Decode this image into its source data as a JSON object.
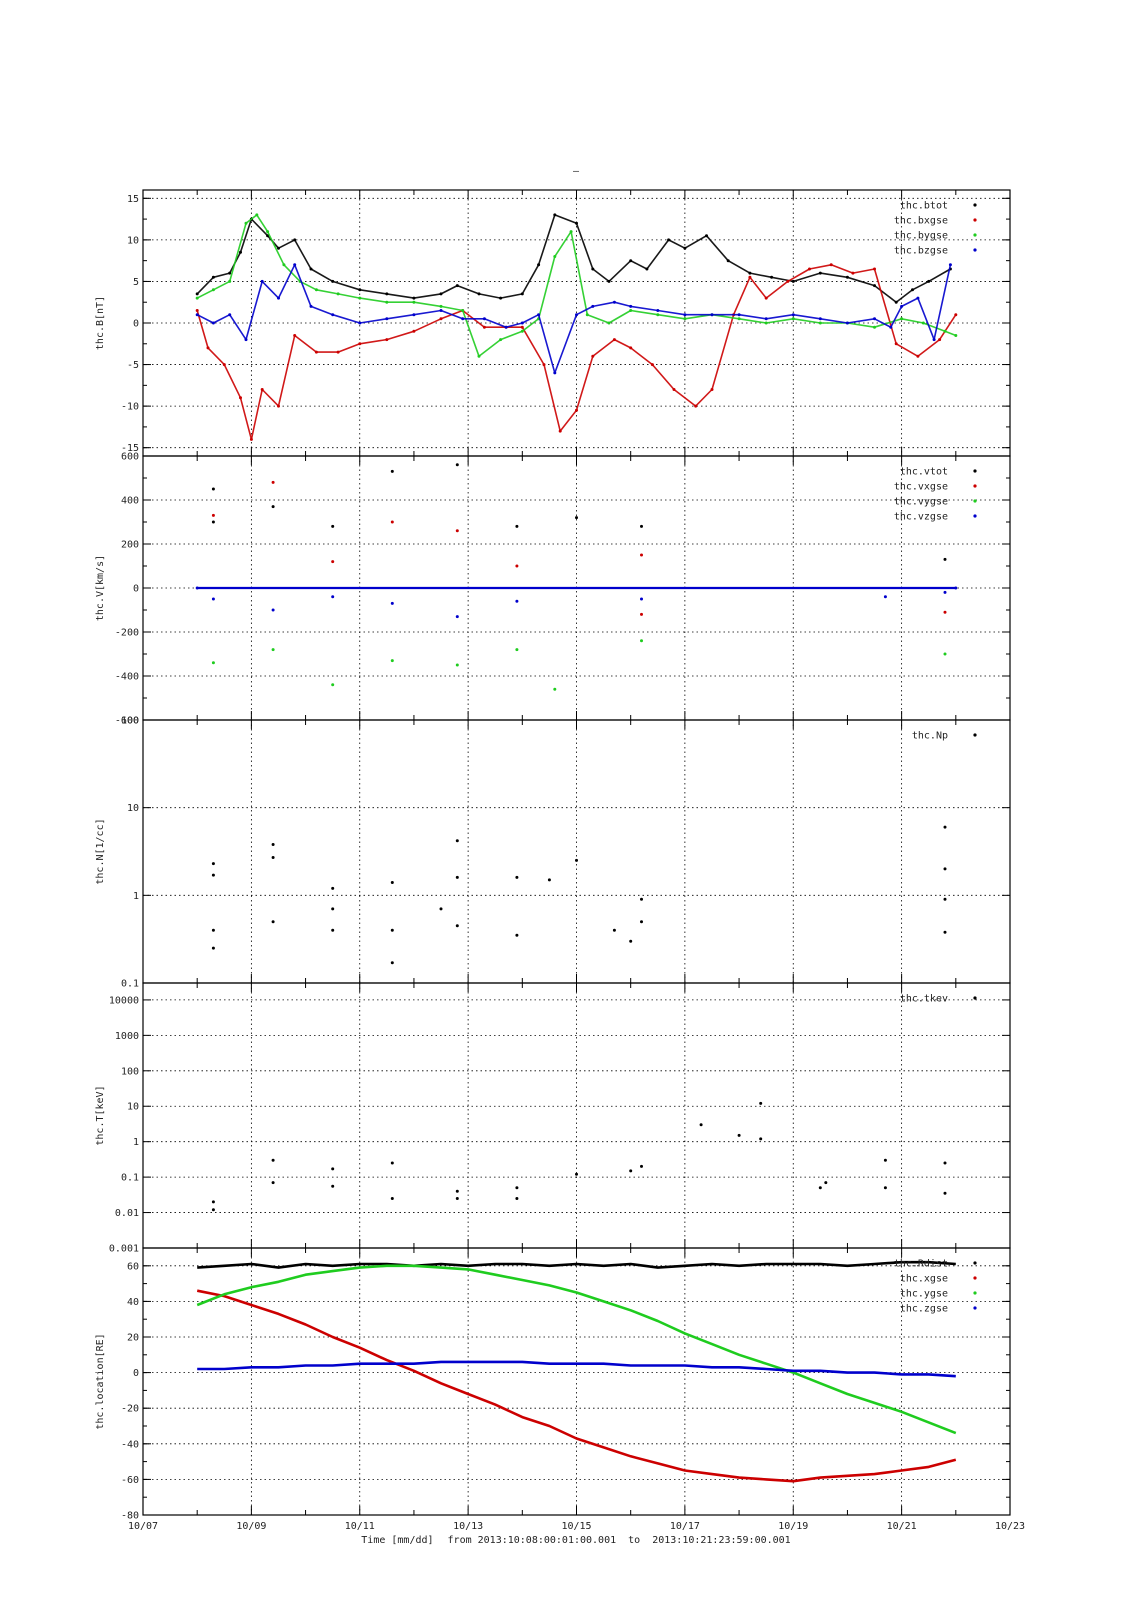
{
  "page": {
    "title_mark": "–",
    "footer": {
      "time_label": "Time [mm/dd]",
      "range_label": "from 2013:10:08:00:01:00.001  to  2013:10:21:23:59:00.001"
    }
  },
  "colors": {
    "black": "#000000",
    "red": "#cc0000",
    "green": "#1fcc1f",
    "blue": "#0000cc",
    "grid": "#000000"
  },
  "chart_data": [
    {
      "type": "scatter",
      "ylabel": "thc.B[nT]",
      "xlim": [
        7,
        23
      ],
      "ylim": [
        -16,
        16
      ],
      "yscale": "linear",
      "yticks": [
        15,
        10,
        5,
        0,
        -5,
        -10,
        -15
      ],
      "legend_position": "top-right",
      "series": [
        {
          "name": "thc.btot",
          "color": "black",
          "x": [
            8.0,
            8.3,
            8.6,
            8.8,
            9.0,
            9.3,
            9.5,
            9.8,
            10.1,
            10.5,
            11.0,
            11.5,
            12.0,
            12.5,
            12.8,
            13.2,
            13.6,
            14.0,
            14.3,
            14.6,
            15.0,
            15.3,
            15.6,
            16.0,
            16.3,
            16.7,
            17.0,
            17.4,
            17.8,
            18.2,
            18.6,
            19.0,
            19.5,
            20.0,
            20.5,
            20.9,
            21.2,
            21.5,
            21.9
          ],
          "y": [
            3.5,
            5.5,
            6.0,
            8.5,
            12.5,
            10.5,
            9.0,
            10.0,
            6.5,
            5.0,
            4.0,
            3.5,
            3.0,
            3.5,
            4.5,
            3.5,
            3.0,
            3.5,
            7.0,
            13.0,
            12.0,
            6.5,
            5.0,
            7.5,
            6.5,
            10.0,
            9.0,
            10.5,
            7.5,
            6.0,
            5.5,
            5.0,
            6.0,
            5.5,
            4.5,
            2.5,
            4.0,
            5.0,
            6.5
          ]
        },
        {
          "name": "thc.bxgse",
          "color": "red",
          "x": [
            8.0,
            8.2,
            8.5,
            8.8,
            9.0,
            9.2,
            9.5,
            9.8,
            10.2,
            10.6,
            11.0,
            11.5,
            12.0,
            12.5,
            12.9,
            13.3,
            13.7,
            14.0,
            14.4,
            14.7,
            15.0,
            15.3,
            15.7,
            16.0,
            16.4,
            16.8,
            17.2,
            17.5,
            17.9,
            18.2,
            18.5,
            18.9,
            19.3,
            19.7,
            20.1,
            20.5,
            20.9,
            21.3,
            21.7,
            22.0
          ],
          "y": [
            1.5,
            -3.0,
            -5.0,
            -9.0,
            -14.0,
            -8.0,
            -10.0,
            -1.5,
            -3.5,
            -3.5,
            -2.5,
            -2.0,
            -1.0,
            0.5,
            1.5,
            -0.5,
            -0.5,
            -0.5,
            -5.0,
            -13.0,
            -10.5,
            -4.0,
            -2.0,
            -3.0,
            -5.0,
            -8.0,
            -10.0,
            -8.0,
            1.0,
            5.5,
            3.0,
            5.0,
            6.5,
            7.0,
            6.0,
            6.5,
            -2.5,
            -4.0,
            -2.0,
            1.0
          ]
        },
        {
          "name": "thc.bygse",
          "color": "green",
          "x": [
            8.0,
            8.3,
            8.6,
            8.9,
            9.1,
            9.3,
            9.6,
            9.9,
            10.2,
            10.6,
            11.0,
            11.5,
            12.0,
            12.5,
            12.9,
            13.2,
            13.6,
            14.0,
            14.3,
            14.6,
            14.9,
            15.2,
            15.6,
            16.0,
            16.5,
            17.0,
            17.5,
            18.0,
            18.5,
            19.0,
            19.5,
            20.0,
            20.5,
            21.0,
            21.4,
            21.8,
            22.0
          ],
          "y": [
            3.0,
            4.0,
            5.0,
            12.0,
            13.0,
            11.0,
            7.0,
            5.0,
            4.0,
            3.5,
            3.0,
            2.5,
            2.5,
            2.0,
            1.5,
            -4.0,
            -2.0,
            -1.0,
            0.5,
            8.0,
            11.0,
            1.0,
            0.0,
            1.5,
            1.0,
            0.5,
            1.0,
            0.5,
            0.0,
            0.5,
            0.0,
            0.0,
            -0.5,
            0.5,
            0.0,
            -1.0,
            -1.5
          ]
        },
        {
          "name": "thc.bzgse",
          "color": "blue",
          "x": [
            8.0,
            8.3,
            8.6,
            8.9,
            9.2,
            9.5,
            9.8,
            10.1,
            10.5,
            11.0,
            11.5,
            12.0,
            12.5,
            12.9,
            13.3,
            13.7,
            14.0,
            14.3,
            14.6,
            15.0,
            15.3,
            15.7,
            16.0,
            16.5,
            17.0,
            17.5,
            18.0,
            18.5,
            19.0,
            19.5,
            20.0,
            20.5,
            20.8,
            21.0,
            21.3,
            21.6,
            21.9
          ],
          "y": [
            1.0,
            0.0,
            1.0,
            -2.0,
            5.0,
            3.0,
            7.0,
            2.0,
            1.0,
            0.0,
            0.5,
            1.0,
            1.5,
            0.5,
            0.5,
            -0.5,
            0.0,
            1.0,
            -6.0,
            1.0,
            2.0,
            2.5,
            2.0,
            1.5,
            1.0,
            1.0,
            1.0,
            0.5,
            1.0,
            0.5,
            0.0,
            0.5,
            -0.5,
            2.0,
            3.0,
            -2.0,
            7.0
          ]
        }
      ]
    },
    {
      "type": "scatter",
      "ylabel": "thc.V[km/s]",
      "xlim": [
        7,
        23
      ],
      "ylim": [
        -600,
        600
      ],
      "yscale": "linear",
      "yticks": [
        600,
        400,
        200,
        0,
        -200,
        -400,
        -600
      ],
      "legend_position": "top-right",
      "series": [
        {
          "name": "thc.vtot",
          "color": "black",
          "x": [
            8.3,
            8.3,
            9.4,
            10.5,
            11.6,
            12.8,
            13.9,
            15.0,
            16.2,
            21.8
          ],
          "y": [
            450,
            300,
            370,
            280,
            530,
            560,
            280,
            320,
            280,
            130
          ]
        },
        {
          "name": "thc.vxgse",
          "color": "red",
          "x": [
            8.3,
            9.4,
            10.5,
            11.6,
            12.8,
            13.9,
            16.2,
            16.2,
            21.8
          ],
          "y": [
            330,
            480,
            120,
            300,
            260,
            100,
            150,
            -120,
            -110
          ]
        },
        {
          "name": "thc.vygse",
          "color": "green",
          "x": [
            8.3,
            9.4,
            10.5,
            11.6,
            12.8,
            13.9,
            14.6,
            16.2,
            21.8
          ],
          "y": [
            -340,
            -280,
            -440,
            -330,
            -350,
            -280,
            -460,
            -240,
            -300
          ]
        },
        {
          "name": "thc.vzgse",
          "color": "blue",
          "x": [
            8.0,
            22.0,
            8.3,
            9.4,
            10.5,
            11.6,
            12.8,
            13.9,
            16.2,
            20.7,
            21.8
          ],
          "y": [
            0,
            0,
            -50,
            -100,
            -40,
            -70,
            -130,
            -60,
            -50,
            -40,
            -20
          ]
        }
      ]
    },
    {
      "type": "scatter",
      "ylabel": "thc.N[1/cc]",
      "xlim": [
        7,
        23
      ],
      "ylim": [
        0.1,
        100
      ],
      "yscale": "log",
      "yticks": [
        100,
        10,
        1,
        0.1
      ],
      "legend_position": "top-right",
      "series": [
        {
          "name": "thc.Np",
          "color": "black",
          "x": [
            8.3,
            8.3,
            8.3,
            8.3,
            9.4,
            9.4,
            9.4,
            10.5,
            10.5,
            10.5,
            11.6,
            11.6,
            11.6,
            12.5,
            12.8,
            12.8,
            12.8,
            13.9,
            13.9,
            14.5,
            15.0,
            15.7,
            16.0,
            16.2,
            16.2,
            21.8,
            21.8,
            21.8,
            21.8
          ],
          "y": [
            2.3,
            1.7,
            0.4,
            0.25,
            3.8,
            2.7,
            0.5,
            1.2,
            0.7,
            0.4,
            1.4,
            0.4,
            0.17,
            0.7,
            4.2,
            1.6,
            0.45,
            1.6,
            0.35,
            1.5,
            2.5,
            0.4,
            0.3,
            0.9,
            0.5,
            6.0,
            2.0,
            0.9,
            0.38
          ]
        }
      ]
    },
    {
      "type": "scatter",
      "ylabel": "thc.T[keV]",
      "xlim": [
        7,
        23
      ],
      "ylim": [
        0.001,
        30000
      ],
      "yscale": "log",
      "yticks": [
        10000,
        1000,
        100,
        10,
        1,
        0.1,
        0.01,
        0.001
      ],
      "legend_position": "top-right",
      "series": [
        {
          "name": "thc.tkev",
          "color": "black",
          "x": [
            8.3,
            8.3,
            9.4,
            9.4,
            10.5,
            10.5,
            11.6,
            11.6,
            12.8,
            12.8,
            13.9,
            13.9,
            15.0,
            16.0,
            16.2,
            17.3,
            18.0,
            18.4,
            18.4,
            19.5,
            19.6,
            20.7,
            20.7,
            21.8,
            21.8
          ],
          "y": [
            0.02,
            0.012,
            0.3,
            0.07,
            0.17,
            0.055,
            0.25,
            0.025,
            0.04,
            0.025,
            0.05,
            0.025,
            0.12,
            0.15,
            0.2,
            3,
            1.5,
            12,
            1.2,
            0.05,
            0.07,
            0.3,
            0.05,
            0.25,
            0.035
          ]
        }
      ]
    },
    {
      "type": "line",
      "ylabel": "thc.location[RE]",
      "xlim": [
        7,
        23
      ],
      "ylim": [
        -80,
        70
      ],
      "yscale": "linear",
      "yticks": [
        60,
        40,
        20,
        0,
        -20,
        -40,
        -60,
        -80
      ],
      "xticklabels": [
        "10/07",
        "10/09",
        "10/11",
        "10/13",
        "10/15",
        "10/17",
        "10/19",
        "10/21",
        "10/23"
      ],
      "legend_position": "top-right",
      "series": [
        {
          "name": "thc.Rdist",
          "color": "black",
          "x": [
            8.0,
            8.5,
            9.0,
            9.5,
            10.0,
            10.5,
            11.0,
            11.5,
            12.0,
            12.5,
            13.0,
            13.5,
            14.0,
            14.5,
            15.0,
            15.5,
            16.0,
            16.5,
            17.0,
            17.5,
            18.0,
            18.5,
            19.0,
            19.5,
            20.0,
            20.5,
            21.0,
            21.5,
            22.0
          ],
          "y": [
            59,
            60,
            61,
            59,
            61,
            60,
            61,
            61,
            60,
            61,
            60,
            61,
            61,
            60,
            61,
            60,
            61,
            59,
            60,
            61,
            60,
            61,
            61,
            61,
            60,
            61,
            62,
            62,
            61
          ]
        },
        {
          "name": "thc.xgse",
          "color": "red",
          "x": [
            8.0,
            8.5,
            9.0,
            9.5,
            10.0,
            10.5,
            11.0,
            11.5,
            12.0,
            12.5,
            13.0,
            13.5,
            14.0,
            14.5,
            15.0,
            15.5,
            16.0,
            16.5,
            17.0,
            17.5,
            18.0,
            18.5,
            19.0,
            19.5,
            20.0,
            20.5,
            21.0,
            21.5,
            22.0
          ],
          "y": [
            46,
            43,
            38,
            33,
            27,
            20,
            14,
            7,
            1,
            -6,
            -12,
            -18,
            -25,
            -30,
            -37,
            -42,
            -47,
            -51,
            -55,
            -57,
            -59,
            -60,
            -61,
            -59,
            -58,
            -57,
            -55,
            -53,
            -49
          ]
        },
        {
          "name": "thc.ygse",
          "color": "green",
          "x": [
            8.0,
            8.5,
            9.0,
            9.5,
            10.0,
            10.5,
            11.0,
            11.5,
            12.0,
            12.5,
            13.0,
            13.5,
            14.0,
            14.5,
            15.0,
            15.5,
            16.0,
            16.5,
            17.0,
            17.5,
            18.0,
            18.5,
            19.0,
            19.5,
            20.0,
            20.5,
            21.0,
            21.5,
            22.0
          ],
          "y": [
            38,
            44,
            48,
            51,
            55,
            57,
            59,
            60,
            60,
            59,
            58,
            55,
            52,
            49,
            45,
            40,
            35,
            29,
            22,
            16,
            10,
            5,
            0,
            -6,
            -12,
            -17,
            -22,
            -28,
            -34
          ]
        },
        {
          "name": "thc.zgse",
          "color": "blue",
          "x": [
            8.0,
            8.5,
            9.0,
            9.5,
            10.0,
            10.5,
            11.0,
            11.5,
            12.0,
            12.5,
            13.0,
            13.5,
            14.0,
            14.5,
            15.0,
            15.5,
            16.0,
            16.5,
            17.0,
            17.5,
            18.0,
            18.5,
            19.0,
            19.5,
            20.0,
            20.5,
            21.0,
            21.5,
            22.0
          ],
          "y": [
            2,
            2,
            3,
            3,
            4,
            4,
            5,
            5,
            5,
            6,
            6,
            6,
            6,
            5,
            5,
            5,
            4,
            4,
            4,
            3,
            3,
            2,
            1,
            1,
            0,
            0,
            -1,
            -1,
            -2
          ]
        }
      ]
    }
  ]
}
